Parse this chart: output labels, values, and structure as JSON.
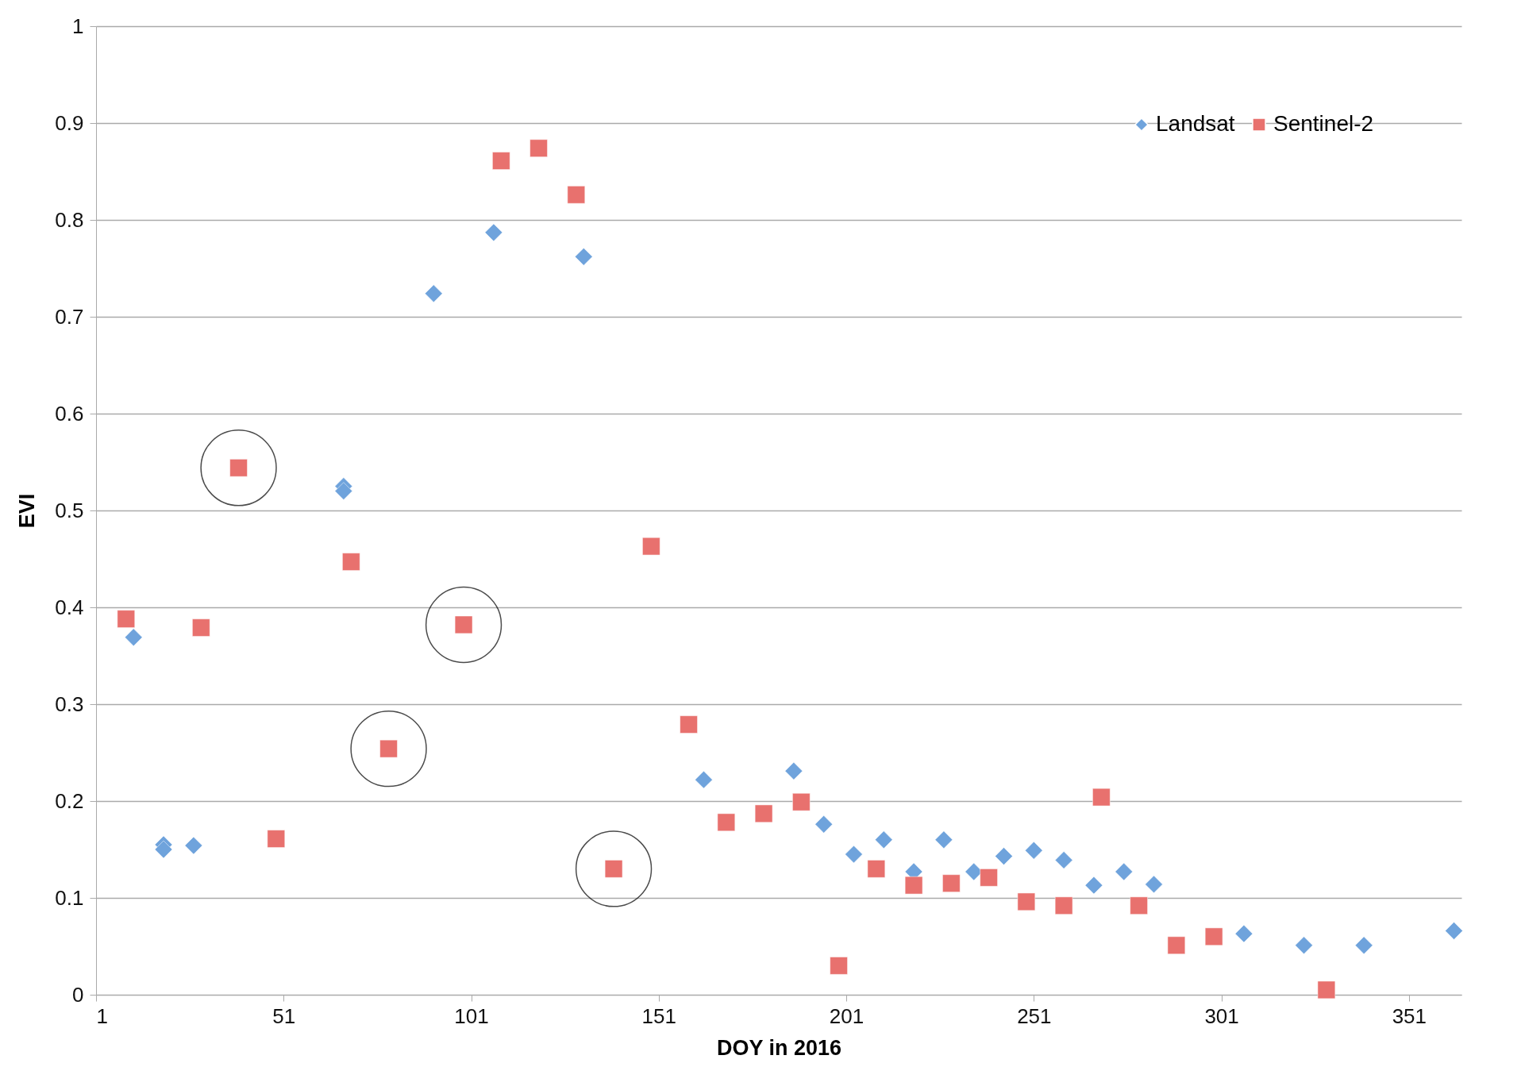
{
  "chart_data": {
    "type": "scatter",
    "xlabel": "DOY in 2016",
    "ylabel": "EVI",
    "xlim": [
      1,
      365
    ],
    "xticks": [
      1,
      51,
      101,
      151,
      201,
      251,
      301,
      351
    ],
    "ylim": [
      0,
      1
    ],
    "yticks": [
      0,
      0.1,
      0.2,
      0.3,
      0.4,
      0.5,
      0.6,
      0.7,
      0.8,
      0.9,
      1
    ],
    "grid": "y",
    "legend": "top right",
    "series": [
      {
        "name": "Landsat",
        "color": "#6fa3dc",
        "marker": "diamond",
        "x": [
          11,
          19,
          19,
          27,
          67,
          67,
          91,
          107,
          131,
          163,
          187,
          195,
          203,
          211,
          219,
          227,
          235,
          243,
          251,
          259,
          267,
          275,
          283,
          307,
          323,
          339,
          363
        ],
        "values": [
          0.369,
          0.155,
          0.15,
          0.154,
          0.525,
          0.52,
          0.724,
          0.787,
          0.762,
          0.222,
          0.231,
          0.176,
          0.145,
          0.16,
          0.127,
          0.16,
          0.127,
          0.143,
          0.149,
          0.139,
          0.113,
          0.127,
          0.114,
          0.063,
          0.051,
          0.051,
          0.066
        ]
      },
      {
        "name": "Sentinel-2",
        "color": "#e8716e",
        "marker": "square",
        "x": [
          9,
          29,
          39,
          49,
          69,
          79,
          99,
          109,
          119,
          129,
          139,
          149,
          159,
          169,
          179,
          189,
          199,
          209,
          219,
          229,
          239,
          249,
          259,
          269,
          279,
          289,
          299,
          329
        ],
        "values": [
          0.388,
          0.379,
          0.544,
          0.161,
          0.447,
          0.254,
          0.382,
          0.861,
          0.874,
          0.826,
          0.13,
          0.463,
          0.279,
          0.178,
          0.187,
          0.199,
          0.03,
          0.13,
          0.113,
          0.115,
          0.121,
          0.096,
          0.092,
          0.204,
          0.092,
          0.051,
          0.06,
          0.005
        ]
      }
    ]
  }
}
